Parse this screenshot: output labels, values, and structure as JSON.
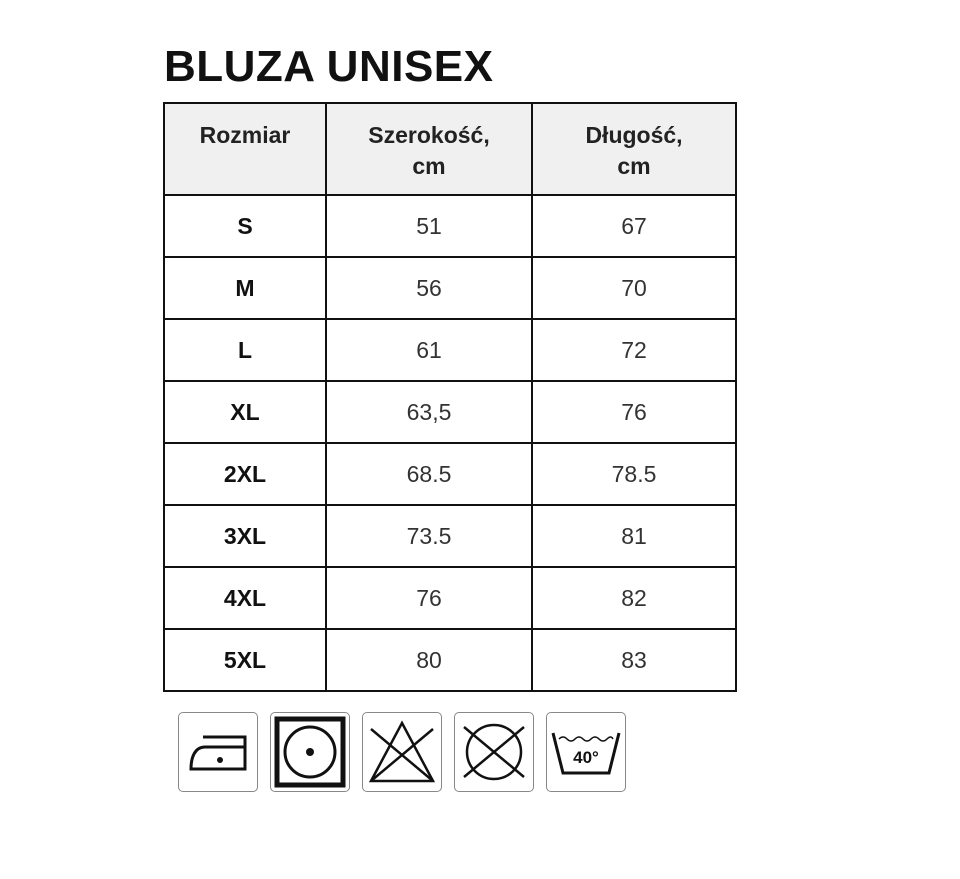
{
  "title": "BLUZA UNISEX",
  "table": {
    "headers": [
      "Rozmiar",
      "Szerokość,",
      "cm",
      "Długość,",
      "cm"
    ],
    "rows": [
      {
        "size": "S",
        "width": "51",
        "length": "67"
      },
      {
        "size": "M",
        "width": "56",
        "length": "70"
      },
      {
        "size": "L",
        "width": "61",
        "length": "72"
      },
      {
        "size": "XL",
        "width": "63,5",
        "length": "76"
      },
      {
        "size": "2XL",
        "width": "68.5",
        "length": "78.5"
      },
      {
        "size": "3XL",
        "width": "73.5",
        "length": "81"
      },
      {
        "size": "4XL",
        "width": "76",
        "length": "82"
      },
      {
        "size": "5XL",
        "width": "80",
        "length": "83"
      }
    ]
  },
  "care_icons": [
    "iron-low-heat-icon",
    "tumble-dry-low-icon",
    "do-not-bleach-icon",
    "do-not-dry-clean-icon",
    "wash-40-icon"
  ],
  "wash_temp": "40°"
}
